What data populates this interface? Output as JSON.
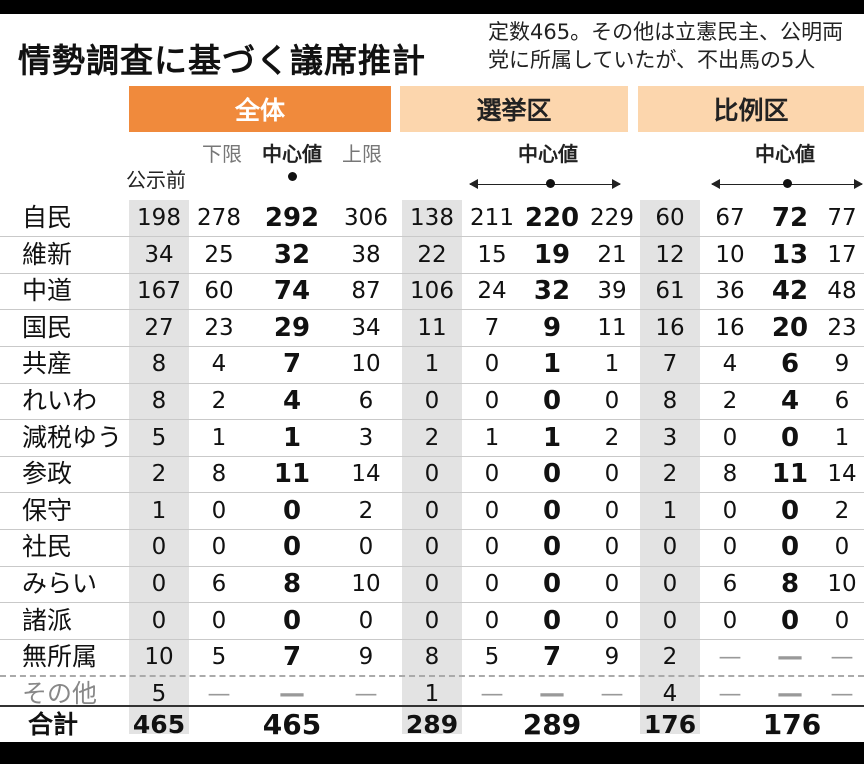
{
  "title": "情勢調査に基づく議席推計",
  "note": [
    "定数465。その他は立憲民主、公明両",
    "党に所属していたが、不出馬の5人"
  ],
  "sections": {
    "all": "全体",
    "district": "選挙区",
    "pr": "比例区"
  },
  "headers": {
    "before": "公示前",
    "low": "下限",
    "center": "中心値",
    "high": "上限"
  },
  "total_row": {
    "label": "合計",
    "before": "465",
    "center": "465",
    "dist_before": "289",
    "dist_center": "289",
    "pr_before": "176",
    "pr_center": "176"
  },
  "table": [
    {
      "party": "自民",
      "v": [
        "198",
        "278",
        "292",
        "306",
        "138",
        "211",
        "220",
        "229",
        "60",
        "67",
        "72",
        "77"
      ]
    },
    {
      "party": "維新",
      "v": [
        "34",
        "25",
        "32",
        "38",
        "22",
        "15",
        "19",
        "21",
        "12",
        "10",
        "13",
        "17"
      ]
    },
    {
      "party": "中道",
      "v": [
        "167",
        "60",
        "74",
        "87",
        "106",
        "24",
        "32",
        "39",
        "61",
        "36",
        "42",
        "48"
      ]
    },
    {
      "party": "国民",
      "v": [
        "27",
        "23",
        "29",
        "34",
        "11",
        "7",
        "9",
        "11",
        "16",
        "16",
        "20",
        "23"
      ]
    },
    {
      "party": "共産",
      "v": [
        "8",
        "4",
        "7",
        "10",
        "1",
        "0",
        "1",
        "1",
        "7",
        "4",
        "6",
        "9"
      ]
    },
    {
      "party": "れいわ",
      "v": [
        "8",
        "2",
        "4",
        "6",
        "0",
        "0",
        "0",
        "0",
        "8",
        "2",
        "4",
        "6"
      ]
    },
    {
      "party": "減税ゆう",
      "v": [
        "5",
        "1",
        "1",
        "3",
        "2",
        "1",
        "1",
        "2",
        "3",
        "0",
        "0",
        "1"
      ]
    },
    {
      "party": "参政",
      "v": [
        "2",
        "8",
        "11",
        "14",
        "0",
        "0",
        "0",
        "0",
        "2",
        "8",
        "11",
        "14"
      ]
    },
    {
      "party": "保守",
      "v": [
        "1",
        "0",
        "0",
        "2",
        "0",
        "0",
        "0",
        "0",
        "1",
        "0",
        "0",
        "2"
      ]
    },
    {
      "party": "社民",
      "v": [
        "0",
        "0",
        "0",
        "0",
        "0",
        "0",
        "0",
        "0",
        "0",
        "0",
        "0",
        "0"
      ]
    },
    {
      "party": "みらい",
      "v": [
        "0",
        "6",
        "8",
        "10",
        "0",
        "0",
        "0",
        "0",
        "0",
        "6",
        "8",
        "10"
      ]
    },
    {
      "party": "諸派",
      "v": [
        "0",
        "0",
        "0",
        "0",
        "0",
        "0",
        "0",
        "0",
        "0",
        "0",
        "0",
        "0"
      ]
    },
    {
      "party": "無所属",
      "v": [
        "10",
        "5",
        "7",
        "9",
        "8",
        "5",
        "7",
        "9",
        "2",
        "—",
        "—",
        "—"
      ]
    },
    {
      "party": "その他",
      "v": [
        "5",
        "—",
        "—",
        "—",
        "1",
        "—",
        "—",
        "—",
        "4",
        "—",
        "—",
        "—"
      ]
    }
  ]
}
